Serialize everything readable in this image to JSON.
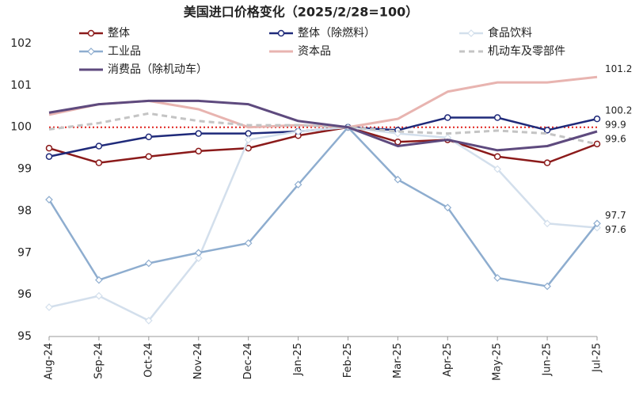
{
  "chart_data": {
    "type": "line",
    "title": "美国进口价格变化（2025/2/28=100）",
    "categories": [
      "Aug-24",
      "Sep-24",
      "Oct-24",
      "Nov-24",
      "Dec-24",
      "Jan-25",
      "Feb-25",
      "Mar-25",
      "Apr-25",
      "May-25",
      "Jun-25",
      "Jul-25"
    ],
    "ylim": [
      95,
      102
    ],
    "yticks": [
      95,
      96,
      97,
      98,
      99,
      100,
      101,
      102
    ],
    "reference_line": {
      "value": 100,
      "color": "#e0201b"
    },
    "series": [
      {
        "name": "整体",
        "color": "#8b1a1a",
        "marker": "circle",
        "label_last": true,
        "values": [
          99.5,
          99.15,
          99.3,
          99.43,
          99.5,
          99.8,
          100,
          99.65,
          99.7,
          99.3,
          99.15,
          99.6
        ]
      },
      {
        "name": "整体（除燃料）",
        "color": "#1f2a7a",
        "marker": "circle",
        "label_last": true,
        "values": [
          99.3,
          99.55,
          99.77,
          99.85,
          99.85,
          99.9,
          100,
          99.93,
          100.23,
          100.23,
          99.93,
          100.2
        ]
      },
      {
        "name": "食品饮料",
        "color": "#d3dfec",
        "marker": "diamond",
        "label_last": true,
        "values": [
          95.7,
          95.97,
          95.38,
          96.87,
          99.7,
          99.9,
          100,
          99.85,
          99.75,
          99.0,
          97.7,
          97.6
        ]
      },
      {
        "name": "工业品",
        "color": "#8eadcf",
        "marker": "diamond",
        "label_last": true,
        "values": [
          98.27,
          96.35,
          96.75,
          97.0,
          97.23,
          98.63,
          100,
          98.75,
          98.08,
          96.4,
          96.2,
          97.7
        ]
      },
      {
        "name": "资本品",
        "color": "#e8b4b0",
        "marker": "none",
        "label_last": true,
        "values": [
          100.3,
          100.55,
          100.63,
          100.43,
          100.0,
          100.05,
          100,
          100.2,
          100.85,
          101.07,
          101.07,
          101.2
        ]
      },
      {
        "name": "机动车及零部件",
        "color": "#c4c4c4",
        "marker": "none",
        "dashed": true,
        "label_last": false,
        "values": [
          99.95,
          100.1,
          100.33,
          100.15,
          100.05,
          100.05,
          100,
          99.9,
          99.85,
          99.92,
          99.85,
          99.6
        ]
      },
      {
        "name": "消费品（除机动车）",
        "color": "#5e4a7e",
        "marker": "none",
        "label_last": true,
        "values": [
          100.35,
          100.55,
          100.63,
          100.63,
          100.55,
          100.15,
          100,
          99.55,
          99.7,
          99.45,
          99.55,
          99.9
        ]
      }
    ]
  }
}
